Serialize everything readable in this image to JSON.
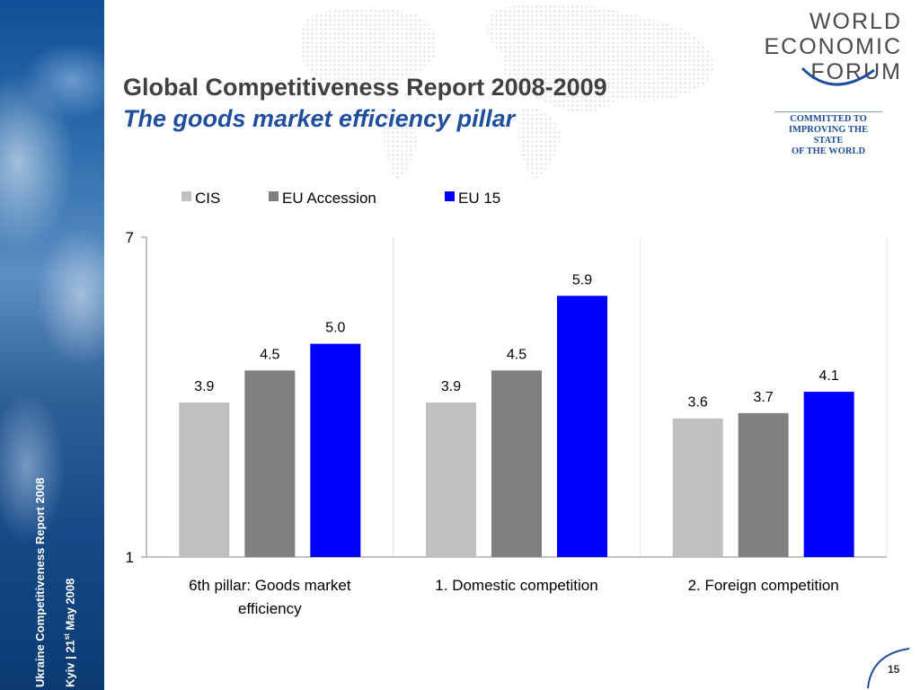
{
  "sidebar": {
    "line1": "Ukraine Competitiveness Report 2008",
    "line2_pre": "Kyiv | 21",
    "line2_sup": "st",
    "line2_post": " May 2008"
  },
  "header": {
    "title": "Global Competitiveness Report 2008-2009",
    "subtitle": "The goods market efficiency pillar"
  },
  "logo": {
    "line1": "WORLD",
    "line2": "ECONOMIC",
    "line3": "FORUM",
    "tagline": [
      "COMMITTED TO",
      "IMPROVING THE STATE",
      "OF THE WORLD"
    ],
    "color": "#4a4a4a",
    "accent": "#1f4e9e"
  },
  "chart_data": {
    "type": "bar",
    "categories": [
      "6th pillar: Goods market efficiency",
      "1. Domestic competition",
      "2. Foreign competition"
    ],
    "series": [
      {
        "name": "CIS",
        "values": [
          3.9,
          3.9,
          3.6
        ],
        "labels": [
          "3.9",
          "3.9",
          "3.6"
        ],
        "color": "#c0c0c0"
      },
      {
        "name": "EU Accession",
        "values": [
          4.5,
          4.5,
          3.7
        ],
        "labels": [
          "4.5",
          "4.5",
          "3.7"
        ],
        "color": "#808080"
      },
      {
        "name": "EU 15",
        "values": [
          5.0,
          5.9,
          4.1
        ],
        "labels": [
          "5.0",
          "5.9",
          "4.1"
        ],
        "color": "#0000ff"
      }
    ],
    "ylim": [
      1,
      7
    ],
    "yticks": [
      "1",
      "7"
    ],
    "legend": "top",
    "grid": false
  },
  "page_number": "15"
}
